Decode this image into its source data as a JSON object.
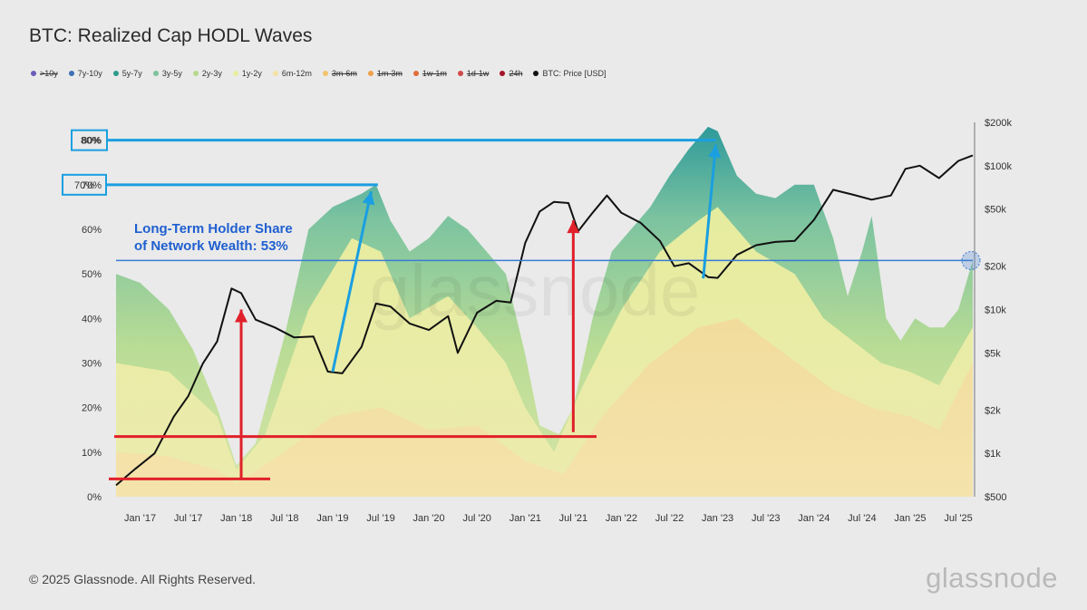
{
  "title": "BTC: Realized Cap HODL Waves",
  "footer": "© 2025 Glassnode. All Rights Reserved.",
  "brand": "glassnode",
  "watermark": "glassnode",
  "legend": [
    {
      "label": ">10y",
      "color": "#6d5bb8",
      "hidden": true
    },
    {
      "label": "7y-10y",
      "color": "#3f6fb5",
      "hidden": false
    },
    {
      "label": "5y-7y",
      "color": "#2e9a8a",
      "hidden": false
    },
    {
      "label": "3y-5y",
      "color": "#7cc39b",
      "hidden": false
    },
    {
      "label": "2y-3y",
      "color": "#b7d98a",
      "hidden": false
    },
    {
      "label": "1y-2y",
      "color": "#e8eda0",
      "hidden": false
    },
    {
      "label": "6m-12m",
      "color": "#f3e2a3",
      "hidden": false
    },
    {
      "label": "3m-6m",
      "color": "#f2c36b",
      "hidden": true
    },
    {
      "label": "1m-3m",
      "color": "#f0a04b",
      "hidden": true
    },
    {
      "label": "1w-1m",
      "color": "#e26d3c",
      "hidden": true
    },
    {
      "label": "1d-1w",
      "color": "#d04a4a",
      "hidden": true
    },
    {
      "label": "24h",
      "color": "#a3152a",
      "hidden": true
    },
    {
      "label": "BTC: Price [USD]",
      "color": "#111111",
      "hidden": false
    }
  ],
  "annotations": {
    "lth_label_line1": "Long-Term Holder Share",
    "lth_label_line2": "of Network Wealth: 53%",
    "box_80": "80%",
    "box_70": "70%"
  },
  "colors": {
    "blue": "#1a9fe0",
    "red": "#e0202a",
    "lth_line": "#3a7bd5"
  },
  "chart_data": {
    "type": "area",
    "title": "BTC: Realized Cap HODL Waves",
    "x_ticks": [
      "Jan '17",
      "Jul '17",
      "Jan '18",
      "Jul '18",
      "Jan '19",
      "Jul '19",
      "Jan '20",
      "Jul '20",
      "Jan '21",
      "Jul '21",
      "Jan '22",
      "Jul '22",
      "Jan '23",
      "Jul '23",
      "Jan '24",
      "Jul '24",
      "Jan '25",
      "Jul '25"
    ],
    "y_left_ticks": [
      "0%",
      "10%",
      "20%",
      "30%",
      "40%",
      "50%",
      "60%",
      "70%",
      "80%"
    ],
    "y_right_ticks": [
      "$500",
      "$1k",
      "$2k",
      "$5k",
      "$10k",
      "$20k",
      "$50k",
      "$100k",
      "$200k"
    ],
    "y_left_range": [
      0,
      84
    ],
    "y_right_range_log": [
      500,
      200000
    ],
    "x_range_years": [
      2016.75,
      2025.65
    ],
    "lth_share_current": 53,
    "long_term_share": {
      "x": [
        2016.75,
        2017.0,
        2017.3,
        2017.55,
        2017.8,
        2018.0,
        2018.2,
        2018.5,
        2018.75,
        2019.0,
        2019.3,
        2019.45,
        2019.6,
        2019.8,
        2020.0,
        2020.2,
        2020.4,
        2020.6,
        2020.8,
        2021.0,
        2021.15,
        2021.35,
        2021.5,
        2021.7,
        2021.9,
        2022.1,
        2022.3,
        2022.5,
        2022.7,
        2022.9,
        2023.0,
        2023.2,
        2023.4,
        2023.6,
        2023.8,
        2024.0,
        2024.2,
        2024.35,
        2024.5,
        2024.6,
        2024.75,
        2024.9,
        2025.05,
        2025.2,
        2025.35,
        2025.5,
        2025.65
      ],
      "y": [
        50,
        48,
        42,
        33,
        20,
        7,
        12,
        36,
        60,
        65,
        68,
        70,
        62,
        55,
        58,
        63,
        60,
        55,
        50,
        32,
        16,
        14,
        20,
        40,
        55,
        60,
        65,
        72,
        78,
        83,
        82,
        72,
        68,
        67,
        70,
        70,
        58,
        45,
        55,
        63,
        40,
        35,
        40,
        38,
        38,
        42,
        53
      ]
    },
    "mid_band_top": {
      "x": [
        2016.75,
        2017.3,
        2017.8,
        2018.0,
        2018.3,
        2018.75,
        2019.2,
        2019.5,
        2019.8,
        2020.2,
        2020.5,
        2020.8,
        2021.0,
        2021.3,
        2021.6,
        2022.0,
        2022.4,
        2022.8,
        2023.0,
        2023.4,
        2023.8,
        2024.1,
        2024.4,
        2024.7,
        2025.0,
        2025.3,
        2025.65
      ],
      "y": [
        30,
        28,
        18,
        6,
        14,
        42,
        58,
        55,
        40,
        45,
        38,
        30,
        20,
        10,
        25,
        42,
        55,
        62,
        65,
        55,
        50,
        40,
        35,
        30,
        28,
        25,
        38
      ]
    },
    "young_band_top": {
      "x": [
        2016.75,
        2017.3,
        2017.8,
        2018.0,
        2018.5,
        2019.0,
        2019.5,
        2020.0,
        2020.5,
        2021.0,
        2021.4,
        2021.8,
        2022.3,
        2022.8,
        2023.2,
        2023.7,
        2024.2,
        2024.6,
        2025.0,
        2025.3,
        2025.65
      ],
      "y": [
        10,
        9,
        6,
        3,
        10,
        18,
        20,
        15,
        16,
        8,
        5,
        18,
        30,
        38,
        40,
        32,
        24,
        20,
        18,
        15,
        30
      ]
    },
    "price": {
      "x": [
        2016.75,
        2016.95,
        2017.15,
        2017.35,
        2017.5,
        2017.65,
        2017.8,
        2017.95,
        2018.05,
        2018.2,
        2018.4,
        2018.6,
        2018.8,
        2018.95,
        2019.1,
        2019.3,
        2019.45,
        2019.6,
        2019.8,
        2020.0,
        2020.2,
        2020.3,
        2020.5,
        2020.7,
        2020.85,
        2021.0,
        2021.15,
        2021.3,
        2021.45,
        2021.55,
        2021.7,
        2021.85,
        2022.0,
        2022.2,
        2022.4,
        2022.55,
        2022.7,
        2022.9,
        2023.0,
        2023.2,
        2023.4,
        2023.6,
        2023.8,
        2024.0,
        2024.2,
        2024.4,
        2024.6,
        2024.8,
        2024.95,
        2025.1,
        2025.3,
        2025.5,
        2025.65
      ],
      "y": [
        600,
        780,
        1000,
        1800,
        2500,
        4200,
        6000,
        14000,
        13000,
        8500,
        7500,
        6400,
        6500,
        3700,
        3600,
        5500,
        11000,
        10500,
        8000,
        7200,
        9000,
        5000,
        9500,
        11500,
        11200,
        29000,
        48000,
        56000,
        55000,
        35000,
        47000,
        62000,
        47000,
        40000,
        30000,
        20000,
        21000,
        16800,
        16600,
        24000,
        28000,
        29500,
        30000,
        42000,
        68000,
        63000,
        58000,
        62000,
        95000,
        100000,
        82000,
        108000,
        118000
      ]
    }
  }
}
